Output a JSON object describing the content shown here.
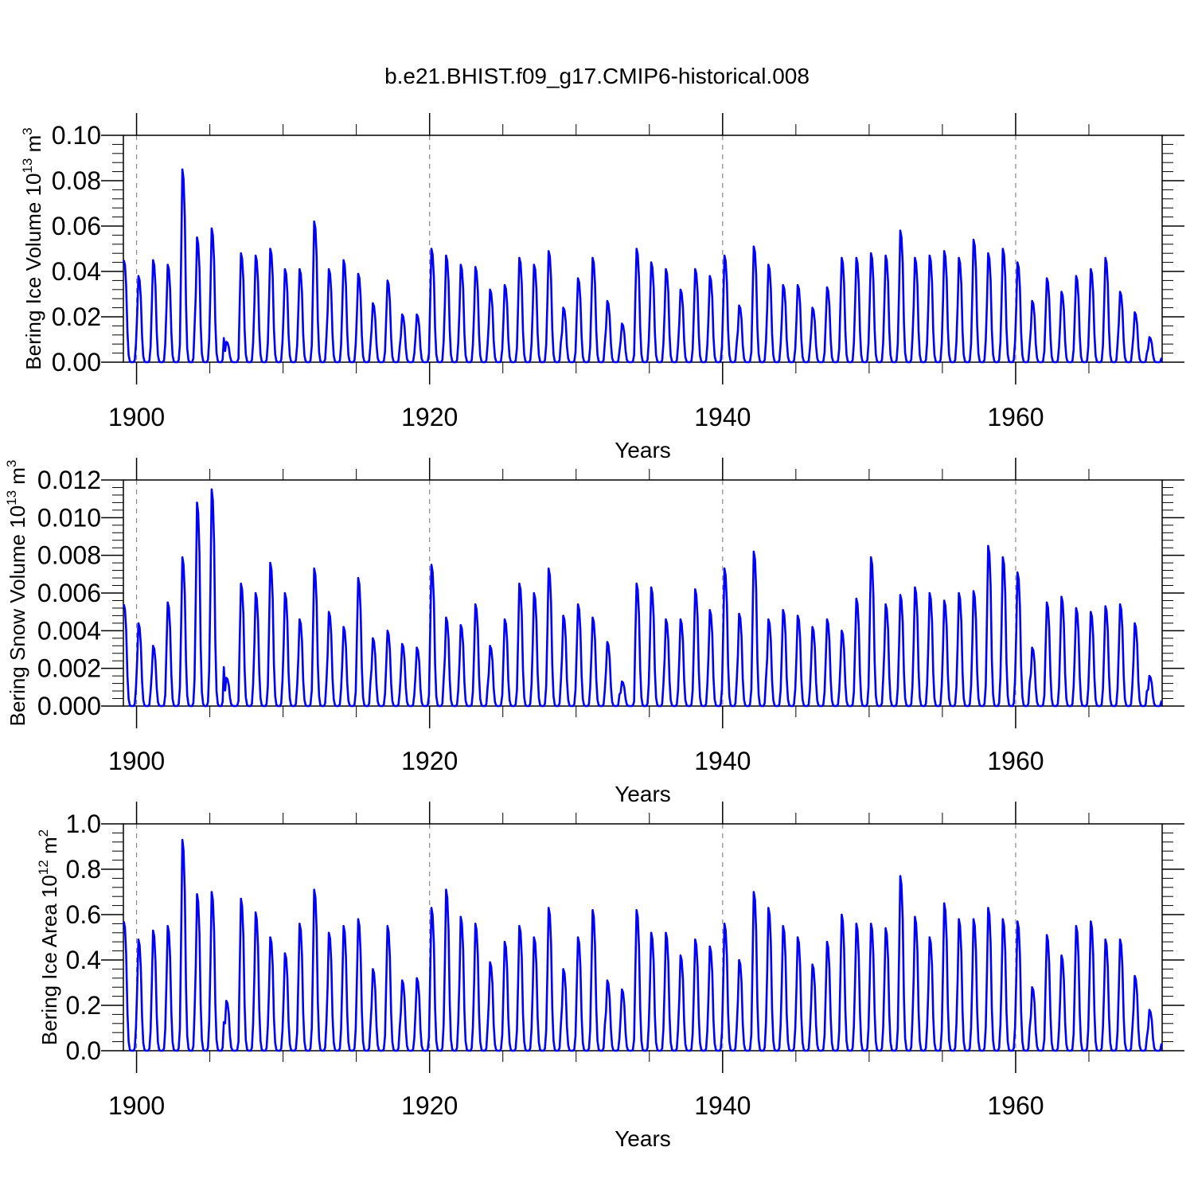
{
  "title": "b.e21.BHIST.f09_g17.CMIP6-historical.008",
  "chart_data": [
    {
      "type": "line",
      "title": "",
      "xlabel": "Years",
      "ylabel": "Bering Ice Volume 10",
      "ylabel_exponent": "13",
      "ylabel_unit": "m",
      "ylabel_unit_exponent": "3",
      "xlim": [
        1899.1,
        1970.0
      ],
      "ylim": [
        0,
        0.1
      ],
      "x_ticks": [
        1900,
        1920,
        1940,
        1960
      ],
      "x_tick_labels": [
        "1900",
        "1920",
        "1940",
        "1960"
      ],
      "y_ticks": [
        0,
        0.02,
        0.04,
        0.06,
        0.08,
        0.1
      ],
      "y_tick_labels": [
        "0.00",
        "0.02",
        "0.04",
        "0.06",
        "0.08",
        "0.10"
      ],
      "grid": "vertical dashed at major x ticks",
      "series": [
        {
          "name": "Bering Ice Volume",
          "color": "#0000ff",
          "start_year": 1899.1,
          "annual_peaks": [
            0.045,
            0.038,
            0.045,
            0.043,
            0.085,
            0.055,
            0.059,
            0.009,
            0.048,
            0.047,
            0.05,
            0.041,
            0.041,
            0.062,
            0.041,
            0.045,
            0.039,
            0.026,
            0.036,
            0.021,
            0.021,
            0.05,
            0.047,
            0.043,
            0.042,
            0.032,
            0.034,
            0.046,
            0.043,
            0.049,
            0.024,
            0.037,
            0.046,
            0.027,
            0.017,
            0.05,
            0.044,
            0.041,
            0.032,
            0.041,
            0.038,
            0.047,
            0.025,
            0.051,
            0.043,
            0.034,
            0.034,
            0.024,
            0.033,
            0.046,
            0.046,
            0.048,
            0.047,
            0.058,
            0.046,
            0.047,
            0.049,
            0.046,
            0.054,
            0.048,
            0.05,
            0.044,
            0.027,
            0.037,
            0.031,
            0.038,
            0.041,
            0.046,
            0.031,
            0.022,
            0.011
          ]
        }
      ]
    },
    {
      "type": "line",
      "title": "",
      "xlabel": "Years",
      "ylabel": "Bering Snow Volume 10",
      "ylabel_exponent": "13",
      "ylabel_unit": "m",
      "ylabel_unit_exponent": "3",
      "xlim": [
        1899.1,
        1970.0
      ],
      "ylim": [
        0,
        0.012
      ],
      "x_ticks": [
        1900,
        1920,
        1940,
        1960
      ],
      "x_tick_labels": [
        "1900",
        "1920",
        "1940",
        "1960"
      ],
      "y_ticks": [
        0,
        0.002,
        0.004,
        0.006,
        0.008,
        0.01,
        0.012
      ],
      "y_tick_labels": [
        "0.000",
        "0.002",
        "0.004",
        "0.006",
        "0.008",
        "0.010",
        "0.012"
      ],
      "grid": "vertical dashed at major x ticks",
      "series": [
        {
          "name": "Bering Snow Volume",
          "color": "#0000ff",
          "start_year": 1899.1,
          "annual_peaks": [
            0.0054,
            0.0044,
            0.0032,
            0.0055,
            0.0079,
            0.0108,
            0.0115,
            0.0015,
            0.0065,
            0.006,
            0.0076,
            0.006,
            0.0046,
            0.0073,
            0.005,
            0.0042,
            0.0068,
            0.0036,
            0.004,
            0.0033,
            0.0031,
            0.0075,
            0.0047,
            0.0043,
            0.0054,
            0.0032,
            0.0046,
            0.0065,
            0.006,
            0.0073,
            0.0048,
            0.0054,
            0.0047,
            0.0034,
            0.0013,
            0.0065,
            0.0063,
            0.0046,
            0.0046,
            0.0062,
            0.0051,
            0.0073,
            0.0049,
            0.0082,
            0.0046,
            0.0051,
            0.0048,
            0.0042,
            0.0046,
            0.004,
            0.0057,
            0.0079,
            0.0054,
            0.0059,
            0.0063,
            0.006,
            0.0056,
            0.006,
            0.0061,
            0.0085,
            0.0079,
            0.0071,
            0.0031,
            0.0055,
            0.0058,
            0.0052,
            0.005,
            0.0053,
            0.0054,
            0.0044,
            0.0016
          ]
        }
      ]
    },
    {
      "type": "line",
      "title": "",
      "xlabel": "Years",
      "ylabel": "Bering Ice Area 10",
      "ylabel_exponent": "12",
      "ylabel_unit": "m",
      "ylabel_unit_exponent": "2",
      "xlim": [
        1899.1,
        1970.0
      ],
      "ylim": [
        0,
        1.0
      ],
      "x_ticks": [
        1900,
        1920,
        1940,
        1960
      ],
      "x_tick_labels": [
        "1900",
        "1920",
        "1940",
        "1960"
      ],
      "y_ticks": [
        0,
        0.2,
        0.4,
        0.6,
        0.8,
        1.0
      ],
      "y_tick_labels": [
        "0.0",
        "0.2",
        "0.4",
        "0.6",
        "0.8",
        "1.0"
      ],
      "grid": "vertical dashed at major x ticks",
      "series": [
        {
          "name": "Bering Ice Area",
          "color": "#0000ff",
          "start_year": 1899.1,
          "annual_peaks": [
            0.57,
            0.49,
            0.53,
            0.55,
            0.93,
            0.69,
            0.7,
            0.22,
            0.67,
            0.61,
            0.5,
            0.43,
            0.56,
            0.71,
            0.52,
            0.55,
            0.58,
            0.36,
            0.55,
            0.31,
            0.32,
            0.63,
            0.71,
            0.59,
            0.56,
            0.39,
            0.48,
            0.55,
            0.5,
            0.63,
            0.36,
            0.5,
            0.62,
            0.31,
            0.27,
            0.62,
            0.52,
            0.52,
            0.42,
            0.49,
            0.46,
            0.56,
            0.4,
            0.7,
            0.63,
            0.55,
            0.5,
            0.38,
            0.48,
            0.6,
            0.56,
            0.56,
            0.54,
            0.77,
            0.59,
            0.5,
            0.65,
            0.58,
            0.58,
            0.63,
            0.58,
            0.57,
            0.28,
            0.51,
            0.42,
            0.55,
            0.57,
            0.49,
            0.49,
            0.33,
            0.18
          ]
        }
      ]
    }
  ]
}
